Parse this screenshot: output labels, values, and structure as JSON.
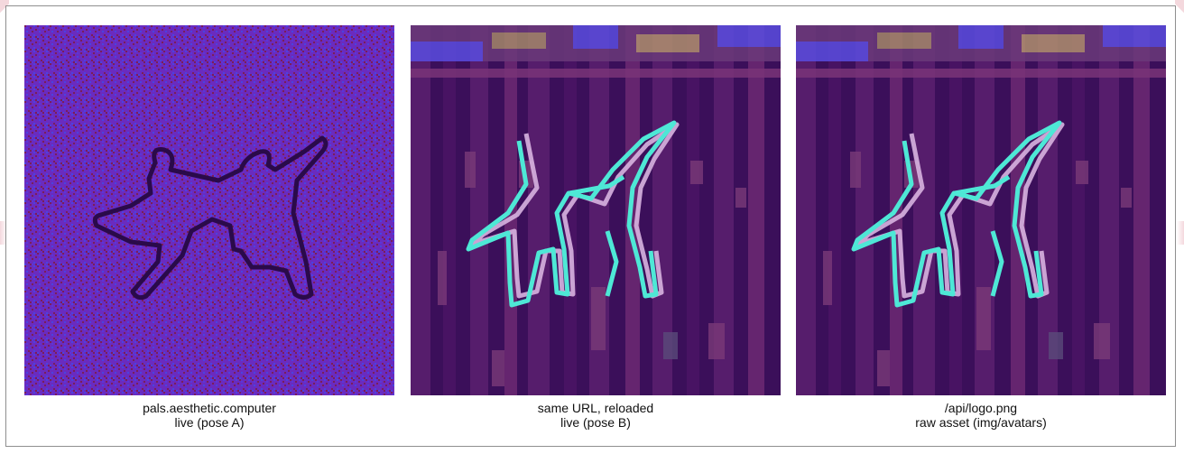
{
  "colors": {
    "noise_purple": "#6a2bbf",
    "noise_maroon": "#7a1e5a",
    "noise_blue": "#4a43e0",
    "outline_dark": "#2a0a4a",
    "glitch_bg": "#3b0f5a",
    "outline_cyan": "#4ee8d6",
    "outline_pink": "#d8b4e0"
  },
  "panels": [
    {
      "icon": "dancing-figures-outline",
      "caption_line1": "pals.aesthetic.computer",
      "caption_line2": "live (pose A)"
    },
    {
      "icon": "glitched-dancing-figures",
      "caption_line1": "same URL, reloaded",
      "caption_line2": "live (pose B)"
    },
    {
      "icon": "glitched-dancing-figures",
      "caption_line1": "/api/logo.png",
      "caption_line2": "raw asset (img/avatars)"
    }
  ]
}
